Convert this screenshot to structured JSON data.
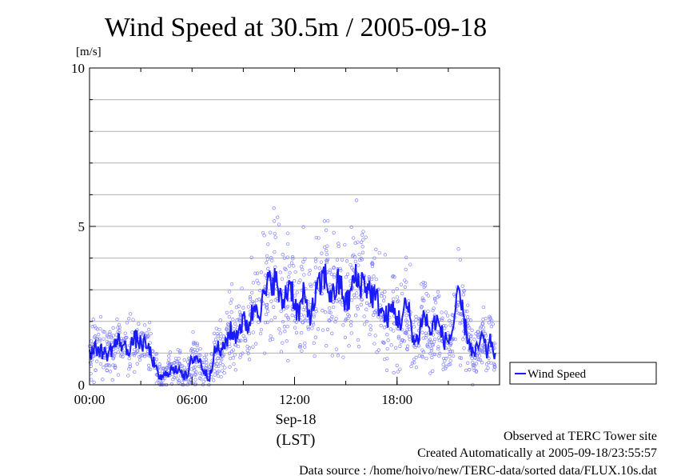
{
  "chart_data": {
    "type": "scatter",
    "title": "Wind Speed at 30.5m / 2005-09-18",
    "ylabel": "[m/s]",
    "xlabel_date": "Sep-18",
    "xlabel_tz": "(LST)",
    "xlim_hours": [
      0,
      24
    ],
    "ylim": [
      0,
      10
    ],
    "y_ticks": [
      {
        "value": 0,
        "label": "0"
      },
      {
        "value": 5,
        "label": "5"
      },
      {
        "value": 10,
        "label": "10"
      }
    ],
    "x_ticks": [
      {
        "value": 0,
        "label": "00:00"
      },
      {
        "value": 6,
        "label": "06:00"
      },
      {
        "value": 12,
        "label": "12:00"
      },
      {
        "value": 18,
        "label": "18:00"
      }
    ],
    "grid": true,
    "legend_position": "right",
    "series": [
      {
        "name": "Wind Speed",
        "color": "#1a1aff",
        "scatter_color": "#8080ff",
        "x_hours": [
          0.0,
          0.25,
          0.5,
          0.75,
          1.0,
          1.25,
          1.5,
          1.75,
          2.0,
          2.25,
          2.5,
          2.75,
          3.0,
          3.25,
          3.5,
          3.75,
          4.0,
          4.25,
          4.5,
          4.75,
          5.0,
          5.25,
          5.5,
          5.75,
          6.0,
          6.25,
          6.5,
          6.75,
          7.0,
          7.25,
          7.5,
          7.75,
          8.0,
          8.25,
          8.5,
          8.75,
          9.0,
          9.25,
          9.5,
          9.75,
          10.0,
          10.25,
          10.5,
          10.75,
          11.0,
          11.25,
          11.5,
          11.75,
          12.0,
          12.25,
          12.5,
          12.75,
          13.0,
          13.25,
          13.5,
          13.75,
          14.0,
          14.25,
          14.5,
          14.75,
          15.0,
          15.25,
          15.5,
          15.75,
          16.0,
          16.25,
          16.5,
          16.75,
          17.0,
          17.25,
          17.5,
          17.75,
          18.0,
          18.25,
          18.5,
          18.75,
          19.0,
          19.25,
          19.5,
          19.75,
          20.0,
          20.25,
          20.5,
          20.75,
          21.0,
          21.25,
          21.5,
          21.75,
          22.0,
          22.25,
          22.5,
          22.75,
          23.0,
          23.25,
          23.5,
          23.75
        ],
        "y_mean": [
          1.0,
          1.1,
          1.15,
          1.05,
          0.95,
          1.1,
          1.3,
          1.4,
          1.2,
          1.1,
          1.35,
          1.45,
          1.3,
          1.25,
          1.1,
          0.7,
          0.3,
          0.2,
          0.35,
          0.5,
          0.4,
          0.6,
          0.3,
          0.25,
          0.85,
          0.9,
          0.7,
          0.4,
          0.2,
          0.9,
          1.2,
          1.0,
          1.4,
          1.7,
          1.5,
          1.8,
          2.0,
          1.9,
          2.2,
          2.6,
          2.4,
          2.8,
          3.2,
          3.4,
          3.1,
          2.5,
          2.9,
          3.3,
          2.6,
          2.2,
          2.8,
          2.4,
          2.2,
          2.9,
          3.1,
          3.5,
          3.0,
          2.8,
          3.2,
          3.1,
          2.5,
          2.8,
          3.4,
          3.2,
          3.3,
          3.1,
          2.9,
          2.7,
          2.5,
          2.1,
          2.2,
          2.4,
          2.1,
          2.0,
          2.5,
          2.2,
          1.3,
          1.5,
          2.2,
          2.0,
          1.6,
          2.1,
          1.8,
          1.4,
          1.4,
          1.7,
          2.7,
          2.5,
          1.8,
          1.3,
          0.9,
          1.2,
          1.5,
          1.0,
          1.4,
          0.9
        ]
      }
    ]
  },
  "footer": {
    "line1": "Observed at TERC Tower site",
    "line2": "Created Automatically at 2005-09-18/23:55:57",
    "line3": "Data source : /home/hoivo/new/TERC-data/sorted data/FLUX.10s.dat"
  }
}
